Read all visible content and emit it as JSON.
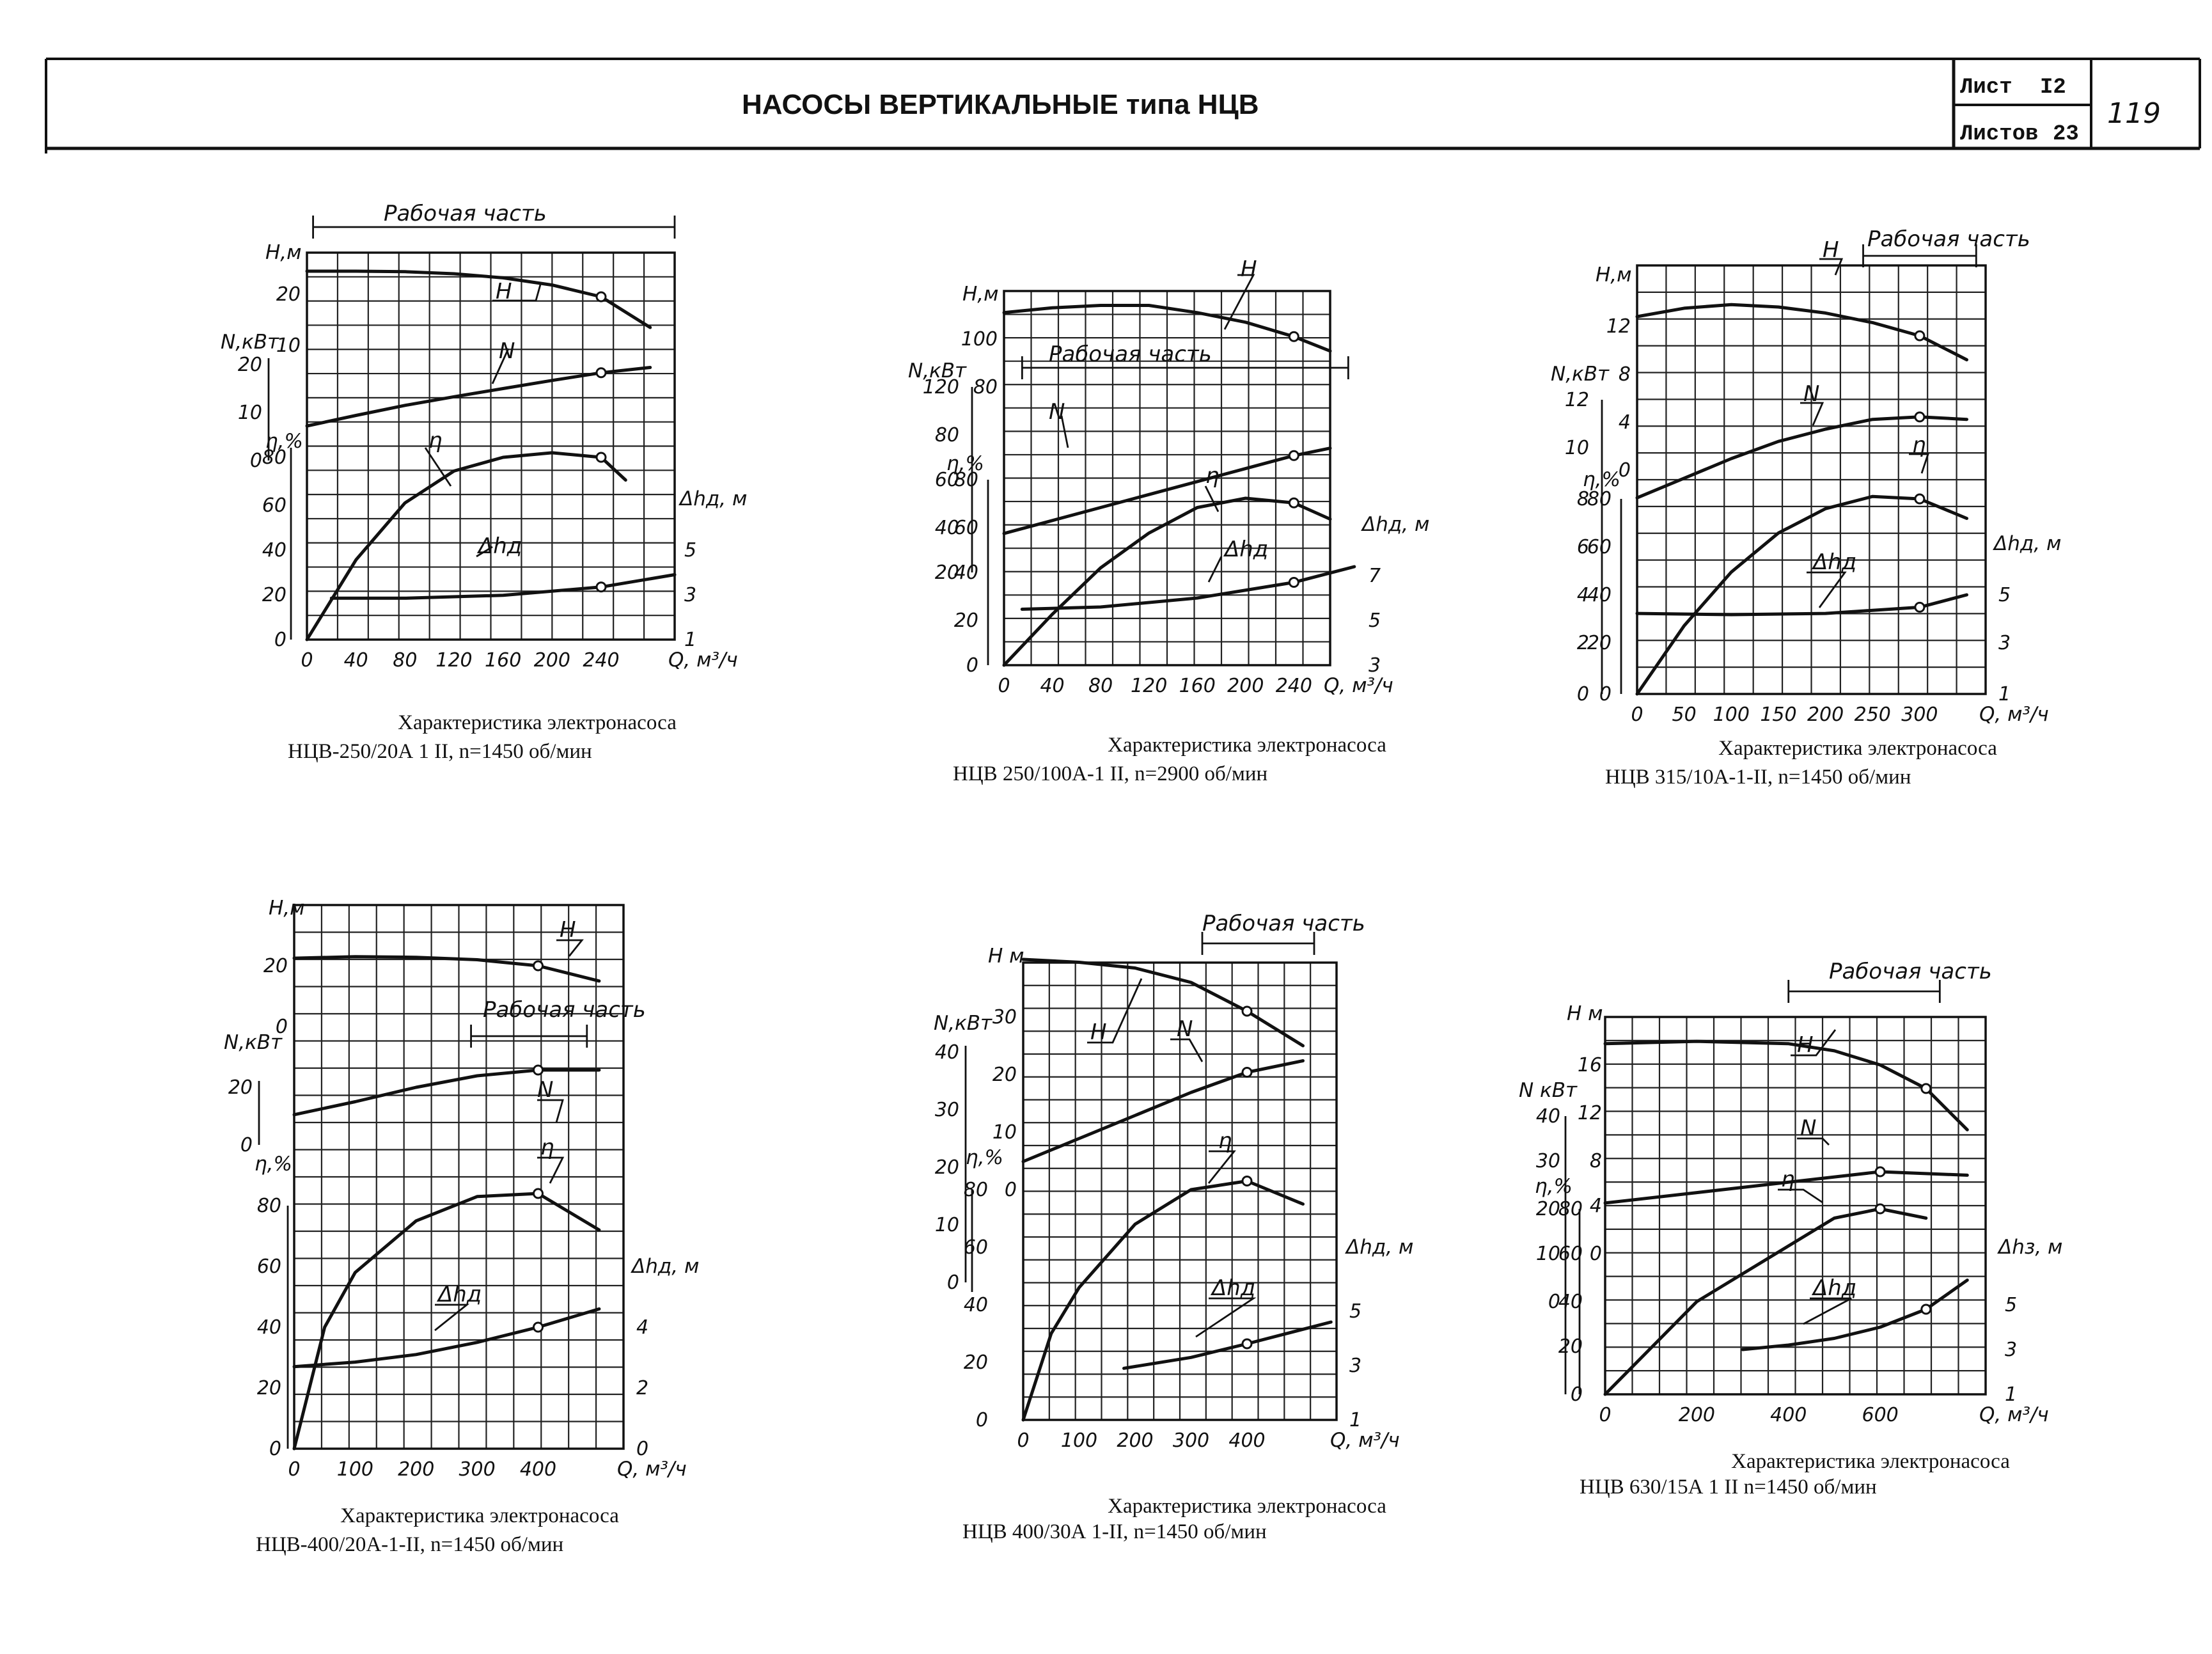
{
  "header": {
    "title": "НАСОСЫ ВЕРТИКАЛЬНЫЕ типа НЦВ",
    "sheet_label": "Лист",
    "sheet_no": "I2",
    "sheets_label": "Листов",
    "sheets_total": "23",
    "page_mark": "119"
  },
  "chart_data": [
    {
      "type": "line",
      "caption_line1": "Характеристика электронасоса",
      "caption_line2": "НЦВ-250/20А 1 II, n=1450 об/мин",
      "x_ticks": [
        "0",
        "40",
        "80",
        "120",
        "160",
        "200",
        "240"
      ],
      "x_label": "Q, м³/ч",
      "working_range_label": "Рабочая часть",
      "working_range": [
        5,
        300
      ],
      "axes": {
        "H": {
          "label": "H,м",
          "ticks": [
            "20",
            "10"
          ]
        },
        "N": {
          "label": "N,кВт",
          "ticks": [
            "20",
            "10",
            "0"
          ]
        },
        "eta": {
          "label": "η,%",
          "ticks": [
            "80",
            "60",
            "40",
            "20",
            "0"
          ]
        },
        "dh": {
          "label": "Δhд, м",
          "ticks": [
            "5",
            "3",
            "1"
          ]
        }
      },
      "series": [
        {
          "name": "H",
          "unit": "м",
          "x": [
            0,
            40,
            80,
            120,
            160,
            200,
            240,
            280
          ],
          "y": [
            24.5,
            24.5,
            24.4,
            24,
            23.2,
            21.8,
            19.5,
            13.5
          ]
        },
        {
          "name": "N",
          "unit": "кВт",
          "x": [
            0,
            40,
            80,
            120,
            160,
            200,
            240,
            280
          ],
          "y": [
            7.2,
            9.4,
            11.5,
            13.3,
            15,
            16.7,
            18.3,
            19.4
          ]
        },
        {
          "name": "η",
          "unit": "%",
          "x": [
            0,
            40,
            80,
            120,
            160,
            200,
            240,
            260
          ],
          "y": [
            0,
            35,
            60,
            74,
            80,
            82,
            80,
            70
          ]
        },
        {
          "name": "Δhд",
          "unit": "м",
          "x": [
            20,
            80,
            160,
            240,
            300
          ],
          "y": [
            2.85,
            2.85,
            2.98,
            3.35,
            3.9
          ]
        }
      ]
    },
    {
      "type": "line",
      "caption_line1": "Характеристика электронасоса",
      "caption_line2": "НЦВ 250/100А-1 II, n=2900 об/мин",
      "x_ticks": [
        "0",
        "40",
        "80",
        "120",
        "160",
        "200",
        "240"
      ],
      "x_label": "Q, м³/ч",
      "working_range_label": "Рабочая часть",
      "working_range": [
        15,
        285
      ],
      "axes": {
        "H": {
          "label": "H,м",
          "ticks": [
            "100",
            "80"
          ]
        },
        "N": {
          "label": "N,кВт",
          "ticks": [
            "120",
            "80",
            "60",
            "40",
            "20"
          ]
        },
        "eta": {
          "label": "η,%",
          "ticks": [
            "80",
            "60",
            "40",
            "20",
            "0"
          ]
        },
        "dh": {
          "label": "Δhд, м",
          "ticks": [
            "7",
            "5",
            "3"
          ]
        }
      },
      "series": [
        {
          "name": "H",
          "unit": "м",
          "x": [
            0,
            40,
            80,
            120,
            160,
            200,
            240,
            270
          ],
          "y": [
            111,
            113,
            114,
            114,
            111,
            107,
            101,
            95
          ]
        },
        {
          "name": "N",
          "unit": "кВт",
          "x": [
            0,
            40,
            80,
            120,
            160,
            200,
            240,
            270
          ],
          "y": [
            41,
            48,
            55,
            62,
            69,
            76,
            83,
            87
          ]
        },
        {
          "name": "η",
          "unit": "%",
          "x": [
            0,
            40,
            80,
            120,
            160,
            200,
            240,
            270
          ],
          "y": [
            0,
            22,
            42,
            57,
            68,
            72,
            70,
            63
          ]
        },
        {
          "name": "Δhд",
          "unit": "м",
          "x": [
            15,
            80,
            160,
            240,
            290
          ],
          "y": [
            5.5,
            5.6,
            6.0,
            6.7,
            7.4
          ]
        }
      ]
    },
    {
      "type": "line",
      "caption_line1": "Характеристика электронасоса",
      "caption_line2": "НЦВ 315/10А-1-II, n=1450 об/мин",
      "x_ticks": [
        "0",
        "50",
        "100",
        "150",
        "200",
        "250",
        "300"
      ],
      "x_label": "Q, м³/ч",
      "working_range_label": "Рабочая часть",
      "working_range": [
        240,
        360
      ],
      "axes": {
        "H": {
          "label": "H,м",
          "ticks": [
            "12",
            "8",
            "4",
            "0"
          ]
        },
        "N": {
          "label": "N,кВт",
          "ticks": [
            "12",
            "10",
            "8",
            "6",
            "4",
            "2",
            "0"
          ]
        },
        "eta": {
          "label": "η,%",
          "ticks": [
            "80",
            "60",
            "40",
            "20",
            "0"
          ]
        },
        "dh": {
          "label": "Δhд, м",
          "ticks": [
            "5",
            "3",
            "1"
          ]
        }
      },
      "series": [
        {
          "name": "H",
          "unit": "м",
          "x": [
            0,
            50,
            100,
            150,
            200,
            250,
            300,
            350
          ],
          "y": [
            12.8,
            13.5,
            13.8,
            13.6,
            13.1,
            12.3,
            11.2,
            9.2
          ]
        },
        {
          "name": "N",
          "unit": "кВт",
          "x": [
            0,
            50,
            100,
            150,
            200,
            250,
            300,
            350
          ],
          "y": [
            8.0,
            8.8,
            9.6,
            10.3,
            10.8,
            11.2,
            11.3,
            11.2
          ]
        },
        {
          "name": "η",
          "unit": "%",
          "x": [
            0,
            50,
            100,
            150,
            200,
            250,
            300,
            350
          ],
          "y": [
            0,
            28,
            50,
            66,
            76,
            81,
            80,
            72
          ]
        },
        {
          "name": "Δhд",
          "unit": "м",
          "x": [
            0,
            100,
            200,
            300,
            350
          ],
          "y": [
            4.25,
            4.2,
            4.25,
            4.5,
            5.0
          ]
        }
      ]
    },
    {
      "type": "line",
      "caption_line1": "Характеристика электронасоса",
      "caption_line2": "НЦВ-400/20А-1-II, n=1450 об/мин",
      "x_ticks": [
        "0",
        "100",
        "200",
        "300",
        "400"
      ],
      "x_label": "Q, м³/ч",
      "working_range_label": "Рабочая часть",
      "working_range": [
        290,
        480
      ],
      "axes": {
        "H": {
          "label": "H,м",
          "ticks": [
            "20",
            "0"
          ]
        },
        "N": {
          "label": "N,кВт",
          "ticks": [
            "20",
            "0"
          ]
        },
        "eta": {
          "label": "η,%",
          "ticks": [
            "80",
            "60",
            "40",
            "20",
            "0"
          ]
        },
        "dh": {
          "label": "Δhд, м",
          "ticks": [
            "4",
            "2",
            "0"
          ]
        }
      },
      "series": [
        {
          "name": "H",
          "unit": "м",
          "x": [
            0,
            100,
            200,
            300,
            400,
            500
          ],
          "y": [
            22.5,
            23,
            22.8,
            22,
            20,
            15
          ]
        },
        {
          "name": "N",
          "unit": "кВт",
          "x": [
            0,
            100,
            200,
            300,
            400,
            500
          ],
          "y": [
            10.5,
            15,
            20,
            24,
            26,
            26
          ]
        },
        {
          "name": "η",
          "unit": "%",
          "x": [
            0,
            50,
            100,
            200,
            300,
            400,
            500
          ],
          "y": [
            0,
            40,
            58,
            75,
            83,
            84,
            72
          ]
        },
        {
          "name": "Δhд",
          "unit": "м",
          "x": [
            0,
            100,
            200,
            300,
            400,
            500
          ],
          "y": [
            2.7,
            2.85,
            3.1,
            3.5,
            4.0,
            4.6
          ]
        }
      ]
    },
    {
      "type": "line",
      "caption_line1": "Характеристика электронасоса",
      "caption_line2": "НЦВ 400/30А 1-II, n=1450 об/мин",
      "x_ticks": [
        "0",
        "100",
        "200",
        "300",
        "400"
      ],
      "x_label": "Q, м³/ч",
      "working_range_label": "Рабочая часть",
      "working_range": [
        320,
        520
      ],
      "axes": {
        "H": {
          "label": "H м",
          "ticks": [
            "30",
            "20",
            "10",
            "0"
          ]
        },
        "N": {
          "label": "N,кВт",
          "ticks": [
            "40",
            "30",
            "20",
            "10",
            "0"
          ]
        },
        "eta": {
          "label": "η,%",
          "ticks": [
            "80",
            "60",
            "40",
            "20",
            "0"
          ]
        },
        "dh": {
          "label": "Δhд, м",
          "ticks": [
            "5",
            "3",
            "1"
          ]
        }
      },
      "series": [
        {
          "name": "H",
          "unit": "м",
          "x": [
            0,
            100,
            200,
            300,
            400,
            500
          ],
          "y": [
            40,
            39.5,
            38.5,
            36,
            31,
            25
          ]
        },
        {
          "name": "N",
          "unit": "кВт",
          "x": [
            0,
            100,
            200,
            300,
            400,
            500
          ],
          "y": [
            21,
            25,
            29,
            33,
            36.5,
            38.5
          ]
        },
        {
          "name": "η",
          "unit": "%",
          "x": [
            0,
            50,
            100,
            200,
            300,
            400,
            500
          ],
          "y": [
            0,
            30,
            46,
            68,
            80,
            83,
            75
          ]
        },
        {
          "name": "Δhд",
          "unit": "м",
          "x": [
            180,
            300,
            400,
            550
          ],
          "y": [
            2.9,
            3.3,
            3.8,
            4.6
          ]
        }
      ]
    },
    {
      "type": "line",
      "caption_line1": "Характеристика электронасоса",
      "caption_line2": "НЦВ 630/15А 1 II n=1450 об/мин",
      "x_ticks": [
        "0",
        "200",
        "400",
        "600"
      ],
      "x_label": "Q, м³/ч",
      "working_range_label": "Рабочая часть",
      "working_range": [
        400,
        730
      ],
      "axes": {
        "H": {
          "label": "H м",
          "ticks": [
            "16",
            "12",
            "8",
            "4",
            "0"
          ]
        },
        "N": {
          "label": "N кВт",
          "ticks": [
            "40",
            "30",
            "20",
            "10",
            "0"
          ]
        },
        "eta": {
          "label": "η,%",
          "ticks": [
            "80",
            "60",
            "40",
            "20",
            "0"
          ]
        },
        "dh": {
          "label": "Δhз, м",
          "ticks": [
            "5",
            "3",
            "1"
          ]
        }
      },
      "series": [
        {
          "name": "H",
          "unit": "м",
          "x": [
            0,
            200,
            400,
            500,
            600,
            700,
            790
          ],
          "y": [
            17.8,
            18,
            17.8,
            17.2,
            16,
            14,
            10.5
          ]
        },
        {
          "name": "N",
          "unit": "кВт",
          "x": [
            0,
            200,
            400,
            600,
            790
          ],
          "y": [
            27.5,
            29,
            30.5,
            32,
            31.5
          ]
        },
        {
          "name": "η",
          "unit": "%",
          "x": [
            0,
            200,
            400,
            500,
            600,
            700
          ],
          "y": [
            0,
            40,
            64,
            76,
            80,
            76
          ]
        },
        {
          "name": "Δhд",
          "unit": "м",
          "x": [
            300,
            400,
            500,
            600,
            700,
            790
          ],
          "y": [
            3.0,
            3.2,
            3.5,
            4.0,
            4.8,
            6.1
          ]
        }
      ]
    }
  ]
}
